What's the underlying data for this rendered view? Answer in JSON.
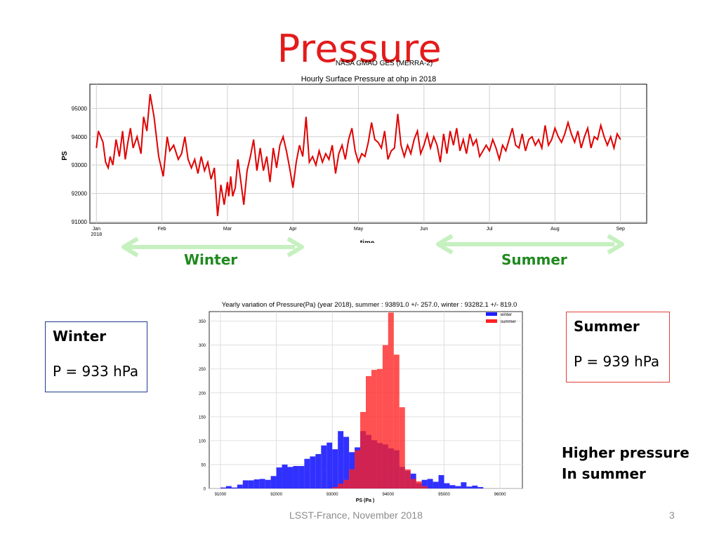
{
  "slide": {
    "title": "Pressure",
    "winter_label": "Winter",
    "summer_label": "Summer",
    "winter_box": {
      "heading": "Winter",
      "value": "P = 933 hPa"
    },
    "summer_box": {
      "heading": "Summer",
      "value": "P = 939 hPa"
    },
    "note_line1": "Higher pressure",
    "note_line2": "In summer",
    "footer": "LSST-France, November 2018",
    "page_number": "3",
    "arrow_color": "#c6f0c0",
    "label_color": "#1f8a1f",
    "title_color": "#e31b1b"
  },
  "chart_data": [
    {
      "type": "line",
      "supertitle": "NASA GMAO GES (MERRA-2)",
      "title": "Hourly Surface Pressure at ohp in 2018",
      "xlabel": "time",
      "ylabel": "PS",
      "x_tick_labels": [
        "Jan\n2018",
        "Feb",
        "Mar",
        "Apr",
        "May",
        "Jun",
        "Jul",
        "Aug",
        "Sep"
      ],
      "y_ticks": [
        91000,
        92000,
        93000,
        94000,
        95000
      ],
      "ylim": [
        90950,
        95850
      ],
      "xlim": [
        -0.1,
        8.4
      ],
      "grid": true,
      "series": [
        {
          "color": "#e00000",
          "x": [
            0,
            0.03,
            0.1,
            0.14,
            0.18,
            0.21,
            0.25,
            0.3,
            0.35,
            0.4,
            0.44,
            0.48,
            0.52,
            0.56,
            0.62,
            0.68,
            0.72,
            0.77,
            0.82,
            0.88,
            0.95,
            1.02,
            1.08,
            1.12,
            1.18,
            1.25,
            1.3,
            1.35,
            1.4,
            1.45,
            1.5,
            1.55,
            1.6,
            1.65,
            1.7,
            1.75,
            1.8,
            1.85,
            1.9,
            1.95,
            2.0,
            2.02,
            2.05,
            2.08,
            2.12,
            2.16,
            2.2,
            2.25,
            2.3,
            2.35,
            2.4,
            2.45,
            2.5,
            2.55,
            2.6,
            2.65,
            2.7,
            2.75,
            2.8,
            2.85,
            2.9,
            2.95,
            3.0,
            3.05,
            3.1,
            3.15,
            3.2,
            3.25,
            3.3,
            3.35,
            3.4,
            3.45,
            3.5,
            3.55,
            3.6,
            3.65,
            3.7,
            3.75,
            3.8,
            3.85,
            3.9,
            3.95,
            4.0,
            4.05,
            4.1,
            4.15,
            4.2,
            4.25,
            4.3,
            4.35,
            4.4,
            4.45,
            4.5,
            4.55,
            4.6,
            4.65,
            4.7,
            4.75,
            4.8,
            4.85,
            4.9,
            4.95,
            5.0,
            5.05,
            5.1,
            5.15,
            5.2,
            5.25,
            5.3,
            5.35,
            5.4,
            5.45,
            5.5,
            5.55,
            5.6,
            5.65,
            5.7,
            5.75,
            5.8,
            5.85,
            5.9,
            5.95,
            6.0,
            6.05,
            6.1,
            6.15,
            6.2,
            6.25,
            6.3,
            6.35,
            6.4,
            6.45,
            6.5,
            6.55,
            6.6,
            6.65,
            6.7,
            6.75,
            6.8,
            6.85,
            6.9,
            6.95,
            7.0,
            7.05,
            7.1,
            7.15,
            7.2,
            7.25,
            7.3,
            7.35,
            7.4,
            7.45,
            7.5,
            7.55,
            7.6,
            7.65,
            7.7,
            7.75,
            7.8,
            7.85,
            7.9,
            7.95,
            8.0
          ],
          "y": [
            93600,
            94200,
            93800,
            93100,
            92900,
            93300,
            93000,
            93900,
            93300,
            94200,
            93200,
            93800,
            94300,
            93600,
            94000,
            93400,
            94700,
            94200,
            95500,
            94700,
            93300,
            92600,
            94000,
            93500,
            93700,
            93200,
            93400,
            94000,
            93200,
            92900,
            93200,
            92700,
            93300,
            92800,
            93100,
            92500,
            92900,
            91200,
            92300,
            91600,
            92400,
            91900,
            92600,
            91900,
            92200,
            93200,
            92500,
            91600,
            92800,
            93300,
            93900,
            92800,
            93600,
            92800,
            93300,
            92400,
            93600,
            92900,
            93700,
            94000,
            93500,
            92900,
            92200,
            93100,
            93700,
            93300,
            94700,
            93100,
            93300,
            93000,
            93500,
            93100,
            93400,
            93200,
            93700,
            92700,
            93400,
            93700,
            93200,
            93900,
            94300,
            93500,
            93100,
            93400,
            93300,
            93800,
            94500,
            93900,
            93800,
            93600,
            94200,
            93200,
            93500,
            93600,
            94800,
            93700,
            93300,
            93700,
            93400,
            93900,
            94200,
            93400,
            93700,
            94100,
            93600,
            94000,
            93700,
            93100,
            94100,
            93400,
            94200,
            93700,
            94300,
            93500,
            93900,
            93400,
            94100,
            93700,
            93900,
            93300,
            93500,
            93700,
            93500,
            93900,
            93600,
            93200,
            93700,
            93500,
            93900,
            94300,
            93700,
            93600,
            94100,
            93500,
            93900,
            94000,
            93700,
            93900,
            93600,
            94400,
            93700,
            93900,
            94300,
            94000,
            93800,
            94100,
            94500,
            94100,
            93800,
            94200,
            93600,
            94000,
            94300,
            93600,
            94000,
            93900,
            94400,
            94000,
            93700,
            94000,
            93600,
            94100,
            93900
          ]
        }
      ]
    },
    {
      "type": "bar",
      "title": "Yearly variation of Pressure(Pa) (year 2018), summer : 93891.0 +/- 257.0, winter : 93282.1 +/- 819.0",
      "xlabel": "PS (Pa )",
      "ylabel": "",
      "x_ticks": [
        91000,
        92000,
        93000,
        94000,
        95000,
        96000
      ],
      "y_ticks": [
        0,
        50,
        100,
        150,
        200,
        250,
        300,
        350
      ],
      "xlim": [
        90800,
        96400
      ],
      "ylim": [
        0,
        370
      ],
      "bin_width": 100,
      "grid": true,
      "legend_position": "top-right",
      "series": [
        {
          "name": "winter",
          "color": "#1f1fff",
          "bin_starts": [
            91000,
            91100,
            91200,
            91300,
            91400,
            91500,
            91600,
            91700,
            91800,
            91900,
            92000,
            92100,
            92200,
            92300,
            92400,
            92500,
            92600,
            92700,
            92800,
            92900,
            93000,
            93100,
            93200,
            93300,
            93400,
            93500,
            93600,
            93700,
            93800,
            93900,
            94000,
            94100,
            94200,
            94300,
            94400,
            94500,
            94600,
            94700,
            94800,
            94900,
            95000,
            95100,
            95200,
            95300,
            95400,
            95500,
            95600
          ],
          "values": [
            2,
            5,
            2,
            8,
            17,
            17,
            19,
            20,
            18,
            26,
            44,
            50,
            45,
            47,
            47,
            62,
            67,
            72,
            90,
            96,
            82,
            120,
            108,
            76,
            86,
            120,
            112,
            101,
            95,
            92,
            84,
            80,
            45,
            37,
            31,
            11,
            18,
            20,
            14,
            28,
            11,
            7,
            5,
            13,
            4,
            6,
            3
          ]
        },
        {
          "name": "summer",
          "color": "#ff2020",
          "bin_starts": [
            93000,
            93100,
            93200,
            93300,
            93400,
            93500,
            93600,
            93700,
            93800,
            93900,
            94000,
            94100,
            94200,
            94300,
            94400,
            94500,
            94600
          ],
          "values": [
            3,
            10,
            18,
            40,
            80,
            160,
            235,
            248,
            250,
            300,
            368,
            280,
            170,
            40,
            20,
            15,
            5
          ]
        }
      ]
    }
  ]
}
